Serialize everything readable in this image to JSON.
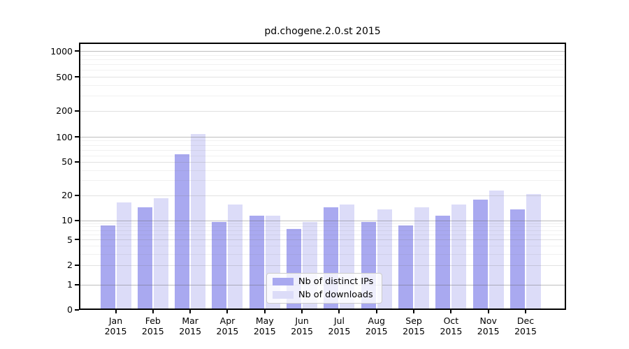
{
  "chart_data": {
    "type": "bar",
    "title": "pd.chogene.2.0.st 2015",
    "categories": [
      "Jan 2015",
      "Feb 2015",
      "Mar 2015",
      "Apr 2015",
      "May 2015",
      "Jun 2015",
      "Jul 2015",
      "Aug 2015",
      "Sep 2015",
      "Oct 2015",
      "Nov 2015",
      "Dec 2015"
    ],
    "series": [
      {
        "name": "Nb of distinct IPs",
        "color": "#a9a9f0",
        "values": [
          8,
          14,
          60,
          9,
          11,
          7,
          14,
          9,
          8,
          11,
          17,
          13
        ]
      },
      {
        "name": "Nb of downloads",
        "color": "#dcdcf8",
        "values": [
          16,
          18,
          105,
          15,
          11,
          9,
          15,
          13,
          14,
          15,
          22,
          20
        ]
      }
    ],
    "xlabel": "",
    "ylabel": "",
    "y_axis": {
      "scale": "log",
      "ticks": [
        0,
        1,
        2,
        5,
        10,
        20,
        50,
        100,
        200,
        500,
        1000
      ],
      "range_top": 1250
    },
    "grid": "on",
    "legend": {
      "position": "inside-bottom-center"
    }
  }
}
